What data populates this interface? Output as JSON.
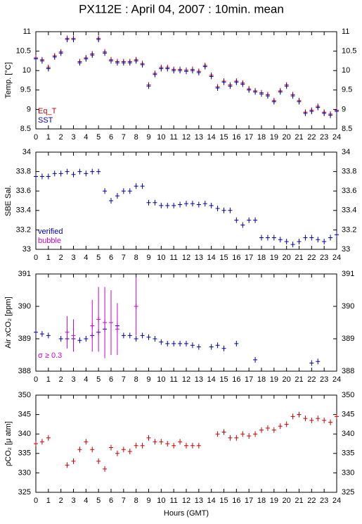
{
  "title": "PX112E : April 04, 2007 : 10min. mean",
  "chart_data": [
    {
      "type": "scatter",
      "ylabel": "Temp. [°C]",
      "x": [
        0,
        0.5,
        1,
        1.5,
        2,
        2.5,
        3,
        3.5,
        4,
        4.5,
        5,
        5.5,
        6,
        6.5,
        7,
        7.5,
        8,
        8.5,
        9,
        9.5,
        10,
        10.5,
        11,
        11.5,
        12,
        12.5,
        13,
        13.5,
        14,
        14.5,
        15,
        15.5,
        16,
        16.5,
        17,
        17.5,
        18,
        18.5,
        19,
        19.5,
        20,
        20.5,
        21,
        21.5,
        22,
        22.5,
        23,
        23.5,
        24
      ],
      "xlim": [
        0,
        24
      ],
      "xticks": [
        0,
        1,
        2,
        3,
        4,
        5,
        6,
        7,
        8,
        9,
        10,
        11,
        12,
        13,
        14,
        15,
        16,
        17,
        18,
        19,
        20,
        21,
        22,
        23,
        24
      ],
      "ylim": [
        8.5,
        11
      ],
      "yticks": [
        8.5,
        9,
        9.5,
        10,
        10.5,
        11
      ],
      "series": [
        {
          "name": "Eq_T",
          "color": "#cc0000",
          "values": [
            10.33,
            10.28,
            10.08,
            10.38,
            10.48,
            10.83,
            10.83,
            10.23,
            10.33,
            10.43,
            10.83,
            10.48,
            10.28,
            10.23,
            10.23,
            10.23,
            10.28,
            10.18,
            9.63,
            9.93,
            10.08,
            10.08,
            10.03,
            10.03,
            10.01,
            10.03,
            9.98,
            10.13,
            9.88,
            9.58,
            9.73,
            9.63,
            9.73,
            9.68,
            9.53,
            9.48,
            9.43,
            9.38,
            9.23,
            9.48,
            9.63,
            9.38,
            9.23,
            8.93,
            8.98,
            9.08,
            8.93,
            8.88,
            8.98
          ]
        },
        {
          "name": "SST",
          "color": "#0000aa",
          "values": [
            10.3,
            10.25,
            10.05,
            10.35,
            10.45,
            10.8,
            10.8,
            10.2,
            10.3,
            10.4,
            10.8,
            10.45,
            10.25,
            10.2,
            10.2,
            10.2,
            10.25,
            10.15,
            9.6,
            9.9,
            10.05,
            10.05,
            10.0,
            10.0,
            9.98,
            10.0,
            9.95,
            10.1,
            9.85,
            9.55,
            9.7,
            9.6,
            9.7,
            9.65,
            9.5,
            9.45,
            9.4,
            9.35,
            9.2,
            9.45,
            9.6,
            9.35,
            9.2,
            8.9,
            8.95,
            9.05,
            8.9,
            8.85,
            8.95
          ]
        }
      ]
    },
    {
      "type": "scatter",
      "ylabel": "SBE Sal.",
      "x": [
        0,
        0.5,
        1,
        1.5,
        2,
        2.5,
        3,
        3.5,
        4,
        4.5,
        5,
        5.5,
        6,
        6.5,
        7,
        7.5,
        8,
        8.5,
        9,
        9.5,
        10,
        10.5,
        11,
        11.5,
        12,
        12.5,
        13,
        13.5,
        14,
        14.5,
        15,
        15.5,
        16,
        16.5,
        17,
        17.5,
        18,
        18.5,
        19,
        19.5,
        20,
        20.5,
        21,
        21.5,
        22,
        22.5,
        23,
        23.5,
        24
      ],
      "xlim": [
        0,
        24
      ],
      "xticks": [
        0,
        1,
        2,
        3,
        4,
        5,
        6,
        7,
        8,
        9,
        10,
        11,
        12,
        13,
        14,
        15,
        16,
        17,
        18,
        19,
        20,
        21,
        22,
        23,
        24
      ],
      "ylim": [
        33,
        34
      ],
      "yticks": [
        33,
        33.2,
        33.4,
        33.6,
        33.8,
        34
      ],
      "series": [
        {
          "name": "verified",
          "color": "#0000aa",
          "values": [
            33.75,
            33.75,
            33.75,
            33.78,
            33.78,
            33.8,
            33.77,
            33.8,
            33.78,
            33.8,
            33.8,
            33.6,
            33.5,
            33.55,
            33.6,
            33.6,
            33.65,
            33.65,
            33.48,
            33.48,
            33.45,
            33.45,
            33.45,
            33.46,
            33.47,
            33.47,
            33.46,
            33.47,
            33.45,
            33.42,
            33.4,
            33.4,
            33.3,
            33.25,
            33.3,
            33.3,
            33.12,
            33.12,
            33.12,
            33.1,
            33.08,
            33.05,
            33.08,
            33.12,
            33.12,
            33.1,
            33.08,
            33.12,
            33.15
          ]
        },
        {
          "name": "bubble",
          "color": "#cc00cc",
          "x": [],
          "values": []
        }
      ]
    },
    {
      "type": "scatter",
      "ylabel": "Air xCO₂ [ppm]",
      "x": [
        0,
        0.5,
        1,
        1.5,
        2,
        2.5,
        3,
        3.5,
        4,
        4.5,
        5,
        5.5,
        6,
        6.5,
        7,
        7.5,
        8,
        8.5,
        9,
        9.5,
        10,
        10.5,
        11,
        11.5,
        12,
        12.5,
        13,
        13.5,
        14,
        14.5,
        15,
        15.5,
        16,
        16.5,
        17,
        17.5,
        18,
        18.5,
        19,
        19.5,
        20,
        20.5,
        21,
        21.5,
        22,
        22.5,
        23,
        23.5,
        24
      ],
      "xlim": [
        0,
        24
      ],
      "xticks": [
        0,
        1,
        2,
        3,
        4,
        5,
        6,
        7,
        8,
        9,
        10,
        11,
        12,
        13,
        14,
        15,
        16,
        17,
        18,
        19,
        20,
        21,
        22,
        23,
        24
      ],
      "ylim": [
        388,
        391
      ],
      "yticks": [
        388,
        389,
        390,
        391
      ],
      "series": [
        {
          "color": "#0000aa",
          "values": [
            389.2,
            389.15,
            389.1,
            null,
            389.0,
            389.0,
            389.0,
            388.95,
            389.0,
            389.1,
            389.2,
            389.3,
            389.5,
            389.4,
            389.1,
            389.1,
            389.0,
            389.1,
            389.05,
            389.0,
            388.9,
            388.85,
            388.85,
            388.85,
            388.85,
            388.8,
            388.75,
            null,
            388.75,
            388.8,
            388.7,
            null,
            388.85,
            null,
            null,
            388.35,
            null,
            null,
            null,
            null,
            null,
            null,
            null,
            null,
            388.25,
            388.3,
            null,
            null,
            null
          ]
        },
        {
          "name": "σ ≥ 0.3",
          "color": "#cc00cc",
          "x": [
            2.5,
            3,
            4.5,
            5,
            5.5,
            6,
            6.5,
            8
          ],
          "values": [
            389.2,
            389.1,
            389.4,
            389.6,
            389.5,
            389.5,
            389.3,
            390.0
          ],
          "yerr": [
            0.5,
            0.5,
            0.8,
            1.0,
            1.1,
            1.0,
            0.8,
            0.9
          ]
        }
      ]
    },
    {
      "type": "scatter",
      "ylabel": "ρCO₂ [μ atm]",
      "xlabel": "Hours (GMT)",
      "x": [
        0,
        0.5,
        1,
        1.5,
        2,
        2.5,
        3,
        3.5,
        4,
        4.5,
        5,
        5.5,
        6,
        6.5,
        7,
        7.5,
        8,
        8.5,
        9,
        9.5,
        10,
        10.5,
        11,
        11.5,
        12,
        12.5,
        13,
        13.5,
        14,
        14.5,
        15,
        15.5,
        16,
        16.5,
        17,
        17.5,
        18,
        18.5,
        19,
        19.5,
        20,
        20.5,
        21,
        21.5,
        22,
        22.5,
        23,
        23.5,
        24
      ],
      "xlim": [
        0,
        24
      ],
      "xticks": [
        0,
        1,
        2,
        3,
        4,
        5,
        6,
        7,
        8,
        9,
        10,
        11,
        12,
        13,
        14,
        15,
        16,
        17,
        18,
        19,
        20,
        21,
        22,
        23,
        24
      ],
      "ylim": [
        325,
        350
      ],
      "yticks": [
        325,
        330,
        335,
        340,
        345,
        350
      ],
      "series": [
        {
          "color": "#cc0000",
          "values": [
            337.5,
            338,
            339,
            null,
            null,
            332,
            333,
            336,
            338,
            336,
            333,
            331,
            336.5,
            335,
            336,
            335.5,
            337,
            337,
            339,
            338,
            338,
            337.5,
            337,
            338,
            337,
            337,
            337,
            null,
            null,
            340,
            340.5,
            339,
            339,
            340,
            339.5,
            340,
            341,
            341.5,
            341,
            342,
            342.5,
            344.5,
            345,
            344,
            343.5,
            344,
            343.5,
            343,
            344.5
          ]
        }
      ]
    }
  ]
}
